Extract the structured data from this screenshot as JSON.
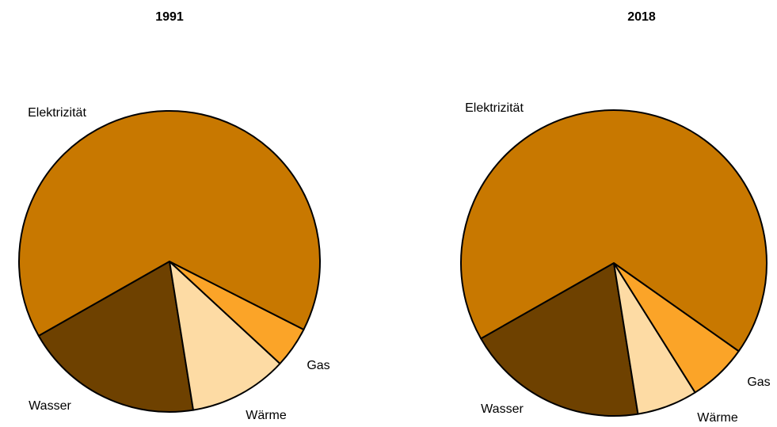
{
  "chart_data": [
    {
      "type": "pie",
      "title": "1991",
      "categories": [
        "Wasser",
        "Wärme",
        "Gas",
        "Elektrizität"
      ],
      "values": [
        19.3,
        10.6,
        4.4,
        65.7
      ],
      "colors": [
        "#6e4100",
        "#fddba4",
        "#fba428",
        "#c87800"
      ]
    },
    {
      "type": "pie",
      "title": "2018",
      "categories": [
        "Wasser",
        "Wärme",
        "Gas",
        "Elektrizität"
      ],
      "values": [
        19.3,
        6.4,
        6.3,
        68
      ],
      "colors": [
        "#6e4100",
        "#fddba4",
        "#fba428",
        "#c87800"
      ]
    }
  ]
}
